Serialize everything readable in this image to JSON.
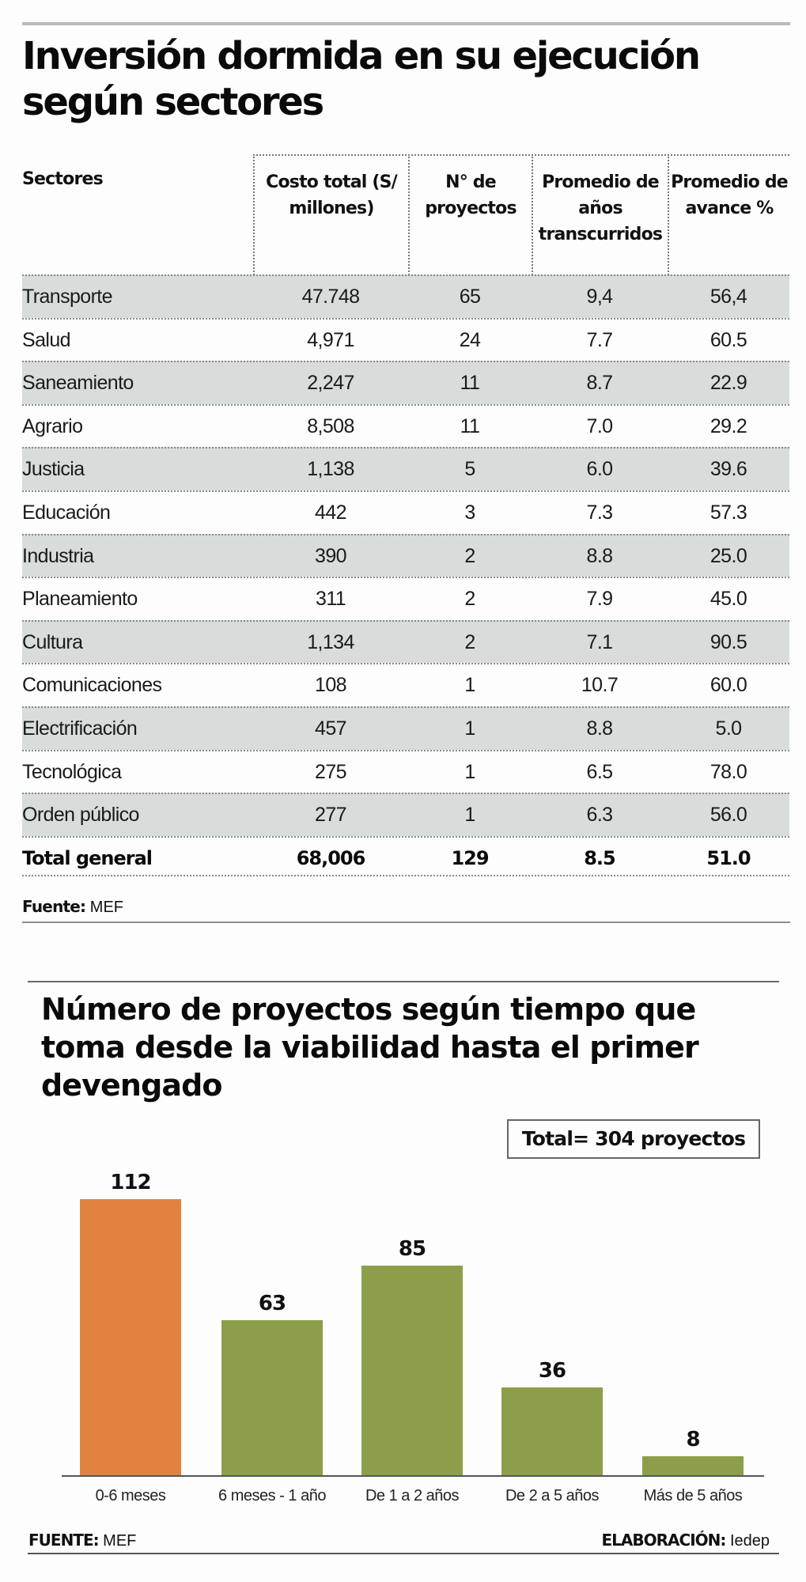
{
  "table_section": {
    "title": "Inversión dormida en su ejecución según sectores",
    "headers": {
      "sector": "Sectores",
      "cost": "Costo total (S/ millones)",
      "projects": "N° de proyectos",
      "years": "Promedio de años transcurridos",
      "progress": "Promedio de avance %"
    },
    "rows": [
      {
        "sector": "Transporte",
        "cost": "47.748",
        "projects": "65",
        "years": "9,4",
        "progress": "56,4"
      },
      {
        "sector": "Salud",
        "cost": "4,971",
        "projects": "24",
        "years": "7.7",
        "progress": "60.5"
      },
      {
        "sector": "Saneamiento",
        "cost": "2,247",
        "projects": "11",
        "years": "8.7",
        "progress": "22.9"
      },
      {
        "sector": "Agrario",
        "cost": "8,508",
        "projects": "11",
        "years": "7.0",
        "progress": "29.2"
      },
      {
        "sector": "Justicia",
        "cost": "1,138",
        "projects": "5",
        "years": "6.0",
        "progress": "39.6"
      },
      {
        "sector": "Educación",
        "cost": "442",
        "projects": "3",
        "years": "7.3",
        "progress": "57.3"
      },
      {
        "sector": "Industria",
        "cost": "390",
        "projects": "2",
        "years": "8.8",
        "progress": "25.0"
      },
      {
        "sector": "Planeamiento",
        "cost": "311",
        "projects": "2",
        "years": "7.9",
        "progress": "45.0"
      },
      {
        "sector": "Cultura",
        "cost": "1,134",
        "projects": "2",
        "years": "7.1",
        "progress": "90.5"
      },
      {
        "sector": "Comunicaciones",
        "cost": "108",
        "projects": "1",
        "years": "10.7",
        "progress": "60.0"
      },
      {
        "sector": "Electrificación",
        "cost": "457",
        "projects": "1",
        "years": "8.8",
        "progress": "5.0"
      },
      {
        "sector": "Tecnológica",
        "cost": "275",
        "projects": "1",
        "years": "6.5",
        "progress": "78.0"
      },
      {
        "sector": "Orden público",
        "cost": "277",
        "projects": "1",
        "years": "6.3",
        "progress": "56.0"
      }
    ],
    "total": {
      "sector": "Total general",
      "cost": "68,006",
      "projects": "129",
      "years": "8.5",
      "progress": "51.0"
    },
    "source_label": "Fuente:",
    "source_value": "MEF",
    "row_shade_color": "#d8dddc"
  },
  "chart_section": {
    "title": "Número de proyectos según tiempo que toma desde la viabilidad hasta el primer devengado",
    "total_badge": "Total= 304 proyectos",
    "source_label": "FUENTE:",
    "source_value": "MEF",
    "credit_label": "ELABORACIÓN:",
    "credit_value": "Iedep",
    "colors": {
      "highlight": "#e08340",
      "default": "#8d9e4a"
    }
  },
  "chart_data": [
    {
      "type": "table",
      "title": "Inversión dormida en su ejecución según sectores",
      "columns": [
        "Sectores",
        "Costo total (S/ millones)",
        "N° de proyectos",
        "Promedio de años transcurridos",
        "Promedio de avance %"
      ],
      "rows": [
        [
          "Transporte",
          47748,
          65,
          9.4,
          56.4
        ],
        [
          "Salud",
          4971,
          24,
          7.7,
          60.5
        ],
        [
          "Saneamiento",
          2247,
          11,
          8.7,
          22.9
        ],
        [
          "Agrario",
          8508,
          11,
          7.0,
          29.2
        ],
        [
          "Justicia",
          1138,
          5,
          6.0,
          39.6
        ],
        [
          "Educación",
          442,
          3,
          7.3,
          57.3
        ],
        [
          "Industria",
          390,
          2,
          8.8,
          25.0
        ],
        [
          "Planeamiento",
          311,
          2,
          7.9,
          45.0
        ],
        [
          "Cultura",
          1134,
          2,
          7.1,
          90.5
        ],
        [
          "Comunicaciones",
          108,
          1,
          10.7,
          60.0
        ],
        [
          "Electrificación",
          457,
          1,
          8.8,
          5.0
        ],
        [
          "Tecnológica",
          275,
          1,
          6.5,
          78.0
        ],
        [
          "Orden público",
          277,
          1,
          6.3,
          56.0
        ],
        [
          "Total general",
          68006,
          129,
          8.5,
          51.0
        ]
      ],
      "source": "Fuente: MEF"
    },
    {
      "type": "bar",
      "title": "Número de proyectos según tiempo que toma desde la viabilidad hasta el primer devengado",
      "categories": [
        "0-6 meses",
        "6 meses - 1 año",
        "De 1 a 2 años",
        "De 2 a 5 años",
        "Más de 5 años"
      ],
      "values": [
        112,
        63,
        85,
        36,
        8
      ],
      "value_labels": [
        "112",
        "63",
        "85",
        "36",
        "8"
      ],
      "colors": [
        "#e08340",
        "#8d9e4a",
        "#8d9e4a",
        "#8d9e4a",
        "#8d9e4a"
      ],
      "annotation": "Total= 304 proyectos",
      "xlabel": "",
      "ylabel": "",
      "ylim": [
        0,
        112
      ],
      "grid": false,
      "legend": "none",
      "source": "FUENTE: MEF",
      "credit": "ELABORACIÓN: Iedep"
    }
  ]
}
